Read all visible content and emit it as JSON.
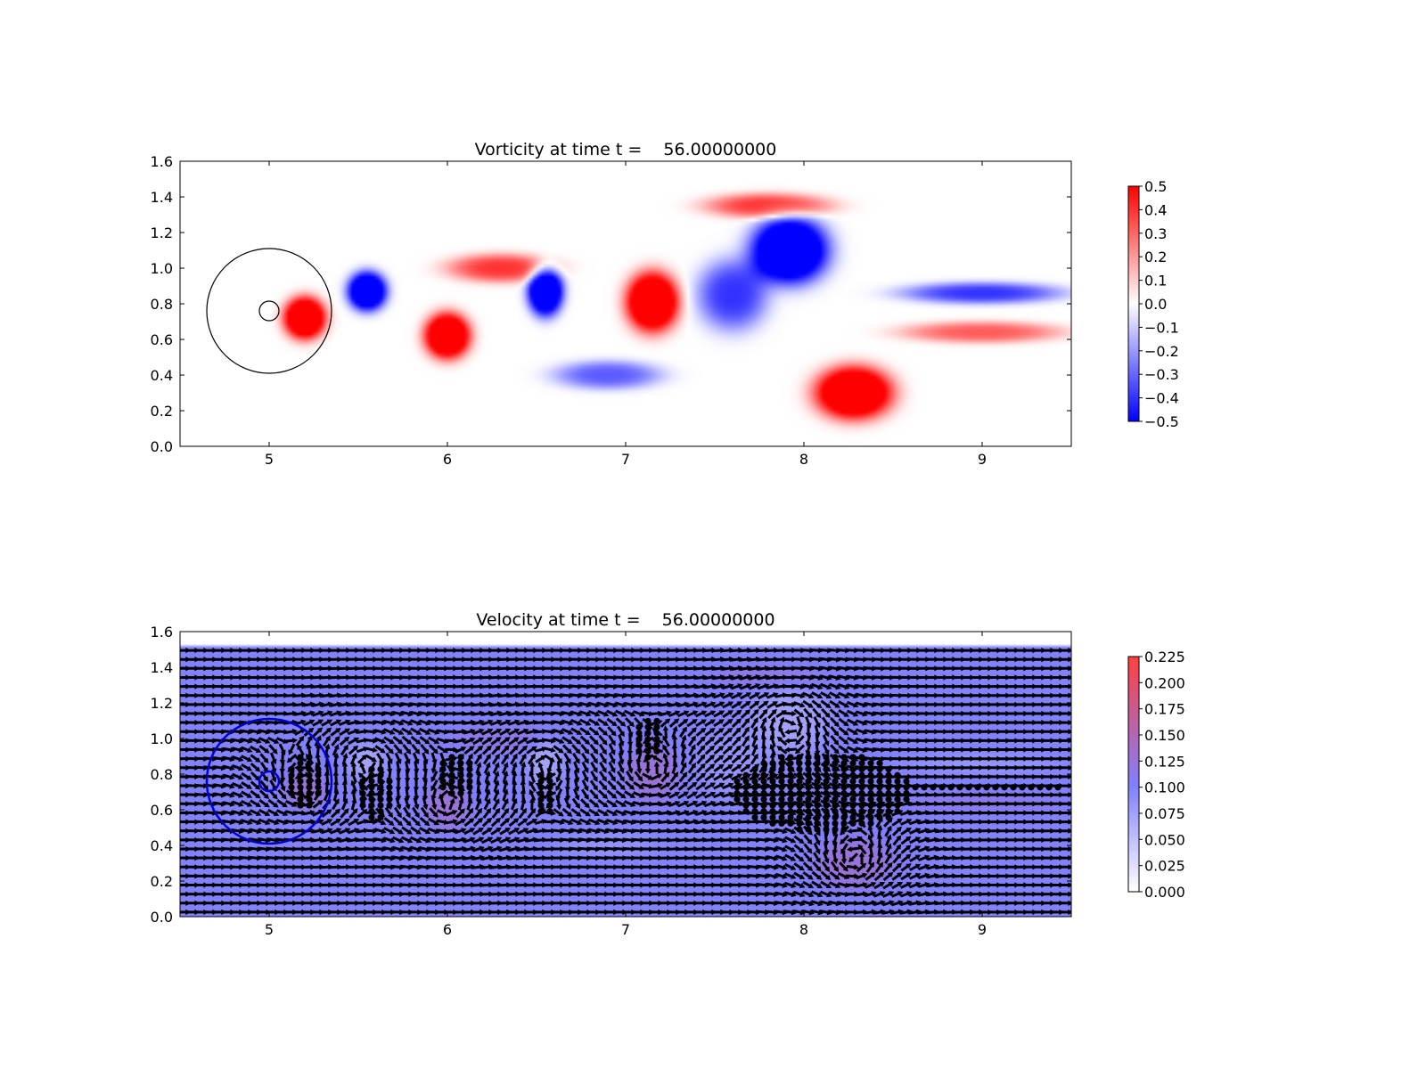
{
  "chart_data": [
    {
      "type": "heatmap",
      "title": "Vorticity at time t =    56.00000000",
      "xlabel": "",
      "ylabel": "",
      "xlim": [
        4.5,
        9.5
      ],
      "ylim": [
        0.0,
        1.6
      ],
      "x_ticks": [
        "5",
        "6",
        "7",
        "8",
        "9"
      ],
      "y_ticks": [
        "0.0",
        "0.2",
        "0.4",
        "0.6",
        "0.8",
        "1.0",
        "1.2",
        "1.4",
        "1.6"
      ],
      "colormap": "bwr",
      "colors": {
        "low": "#0000ff",
        "mid": "#ffffff",
        "high": "#ff0000"
      },
      "clim": [
        -0.5,
        0.5
      ],
      "colorbar_ticks": [
        "0.5",
        "0.4",
        "0.3",
        "0.2",
        "0.1",
        "0.0",
        "−0.1",
        "−0.2",
        "−0.3",
        "−0.4",
        "−0.5"
      ],
      "circles": [
        {
          "cx": 5.0,
          "cy": 0.76,
          "r": 0.35,
          "color": "#000000"
        },
        {
          "cx": 5.0,
          "cy": 0.76,
          "r": 0.055,
          "color": "#000000"
        }
      ],
      "vortices": [
        {
          "x": 5.2,
          "y": 0.72,
          "sx": 0.12,
          "sy": 0.12,
          "value": 0.5
        },
        {
          "x": 5.55,
          "y": 0.87,
          "sx": 0.11,
          "sy": 0.11,
          "value": -0.5
        },
        {
          "x": 6.0,
          "y": 0.62,
          "sx": 0.13,
          "sy": 0.13,
          "value": 0.5
        },
        {
          "x": 6.55,
          "y": 0.87,
          "sx": 0.1,
          "sy": 0.14,
          "value": -0.5
        },
        {
          "x": 7.15,
          "y": 0.81,
          "sx": 0.15,
          "sy": 0.17,
          "value": 0.5
        },
        {
          "x": 7.92,
          "y": 1.1,
          "sx": 0.22,
          "sy": 0.19,
          "value": -0.5
        },
        {
          "x": 8.28,
          "y": 0.3,
          "sx": 0.22,
          "sy": 0.15,
          "value": 0.5
        },
        {
          "x": 9.0,
          "y": 0.86,
          "sx": 0.45,
          "sy": 0.06,
          "value": -0.25
        },
        {
          "x": 9.0,
          "y": 0.64,
          "sx": 0.45,
          "sy": 0.06,
          "value": 0.2
        },
        {
          "x": 6.3,
          "y": 1.0,
          "sx": 0.3,
          "sy": 0.08,
          "value": 0.25
        },
        {
          "x": 6.9,
          "y": 0.4,
          "sx": 0.3,
          "sy": 0.08,
          "value": -0.2
        },
        {
          "x": 7.8,
          "y": 1.35,
          "sx": 0.35,
          "sy": 0.07,
          "value": 0.25
        },
        {
          "x": 7.6,
          "y": 0.85,
          "sx": 0.2,
          "sy": 0.2,
          "value": -0.25
        }
      ]
    },
    {
      "type": "heatmap",
      "title": "Velocity at time t =    56.00000000",
      "xlabel": "",
      "ylabel": "",
      "xlim": [
        4.5,
        9.5
      ],
      "ylim": [
        0.0,
        1.6
      ],
      "x_ticks": [
        "5",
        "6",
        "7",
        "8",
        "9"
      ],
      "y_ticks": [
        "0.0",
        "0.2",
        "0.4",
        "0.6",
        "0.8",
        "1.0",
        "1.2",
        "1.4",
        "1.6"
      ],
      "colormap": "speed",
      "colors": {
        "low": "#ffffff",
        "mid": "#8080ff",
        "high": "#ff4040",
        "arrow": "#000000"
      },
      "clim": [
        0.0,
        0.225
      ],
      "colorbar_ticks": [
        "0.225",
        "0.200",
        "0.175",
        "0.150",
        "0.125",
        "0.100",
        "0.075",
        "0.050",
        "0.025",
        "0.000"
      ],
      "field_top": 1.52,
      "background_speed": 0.1,
      "circles": [
        {
          "cx": 5.0,
          "cy": 0.76,
          "r": 0.35,
          "color": "#0000cc"
        },
        {
          "cx": 5.0,
          "cy": 0.76,
          "r": 0.055,
          "color": "#0000cc"
        }
      ],
      "vortices": [
        {
          "x": 5.2,
          "y": 0.72,
          "sx": 0.12,
          "sy": 0.12,
          "value": 0.5
        },
        {
          "x": 5.55,
          "y": 0.87,
          "sx": 0.11,
          "sy": 0.11,
          "value": -0.5
        },
        {
          "x": 6.0,
          "y": 0.62,
          "sx": 0.13,
          "sy": 0.13,
          "value": 0.5
        },
        {
          "x": 6.55,
          "y": 0.87,
          "sx": 0.1,
          "sy": 0.14,
          "value": -0.5
        },
        {
          "x": 7.15,
          "y": 0.81,
          "sx": 0.15,
          "sy": 0.17,
          "value": 0.5
        },
        {
          "x": 7.92,
          "y": 1.1,
          "sx": 0.22,
          "sy": 0.19,
          "value": -0.5
        },
        {
          "x": 8.28,
          "y": 0.3,
          "sx": 0.22,
          "sy": 0.15,
          "value": 0.5
        }
      ],
      "dot_regions": [
        {
          "x": 5.2,
          "y": 0.76,
          "rx": 0.1,
          "ry": 0.14
        },
        {
          "x": 5.6,
          "y": 0.7,
          "rx": 0.09,
          "ry": 0.15
        },
        {
          "x": 6.05,
          "y": 0.8,
          "rx": 0.11,
          "ry": 0.13
        },
        {
          "x": 6.55,
          "y": 0.7,
          "rx": 0.06,
          "ry": 0.12
        },
        {
          "x": 7.13,
          "y": 1.0,
          "rx": 0.09,
          "ry": 0.12
        },
        {
          "x": 8.1,
          "y": 0.7,
          "rx": 0.5,
          "ry": 0.22
        },
        {
          "x": 9.0,
          "y": 0.72,
          "rx": 0.45,
          "ry": 0.025
        }
      ]
    }
  ]
}
